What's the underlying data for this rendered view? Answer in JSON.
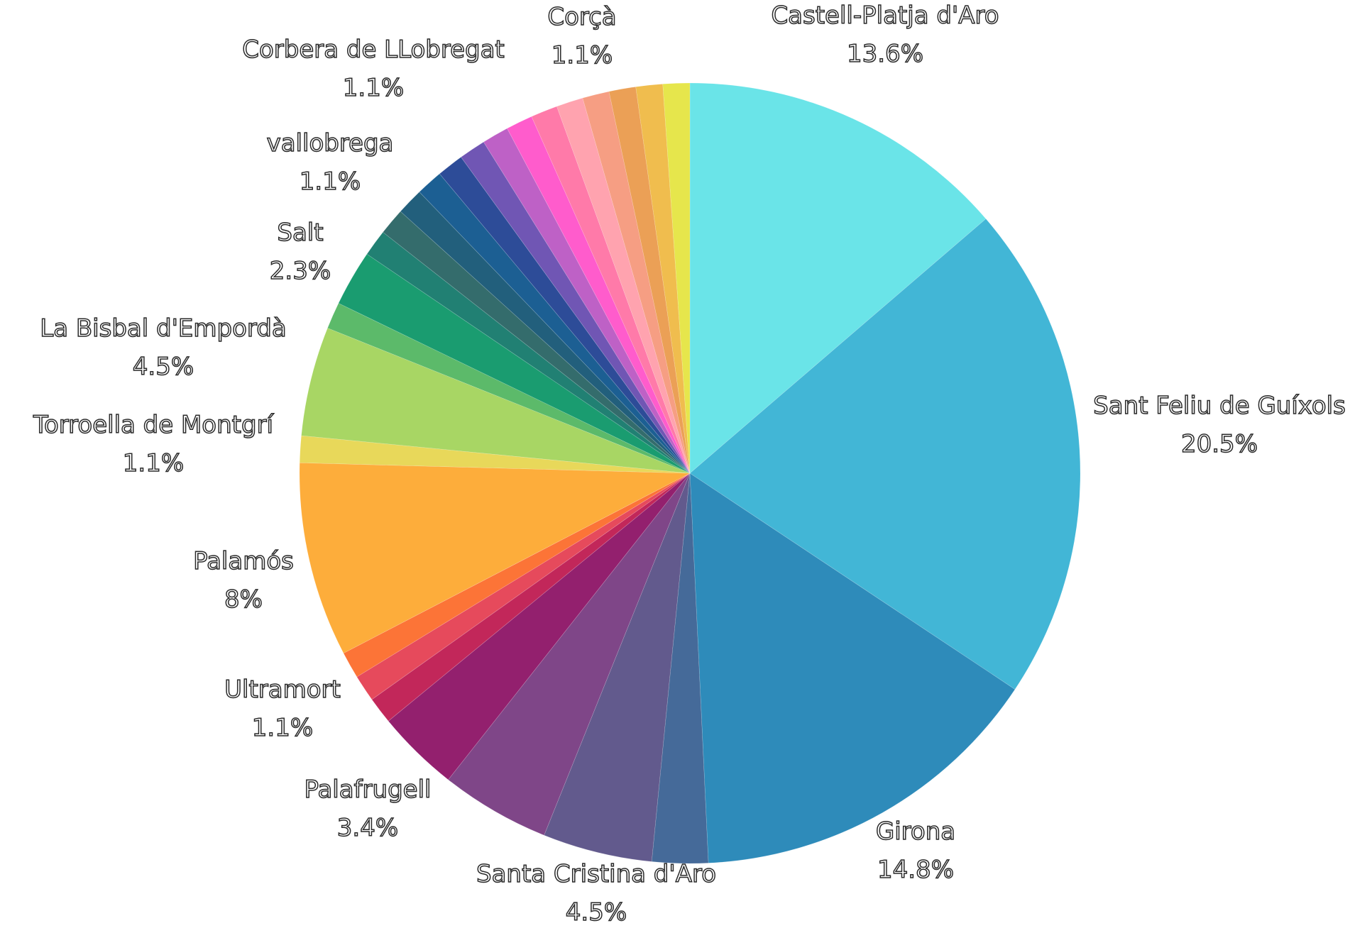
{
  "chart_data": {
    "type": "pie",
    "start_angle_deg": 0,
    "direction": "clockwise",
    "slices": [
      {
        "name": "Castell-Platja d'Aro",
        "value": 13.6,
        "label": "13.6%",
        "color": "#6ae4e8",
        "show_label": true
      },
      {
        "name": "Sant Feliu de Guíxols",
        "value": 20.5,
        "label": "20.5%",
        "color": "#42b6d6",
        "show_label": true
      },
      {
        "name": "Girona",
        "value": 14.8,
        "label": "14.8%",
        "color": "#2e8bba",
        "show_label": true
      },
      {
        "name": "",
        "value": 2.3,
        "label": "",
        "color": "#456a99",
        "show_label": false
      },
      {
        "name": "Santa Cristina d'Aro",
        "value": 4.5,
        "label": "4.5%",
        "color": "#625a8d",
        "show_label": true
      },
      {
        "name": "",
        "value": 4.5,
        "label": "",
        "color": "#7f4688",
        "show_label": false
      },
      {
        "name": "Palafrugell",
        "value": 3.4,
        "label": "3.4%",
        "color": "#93206e",
        "show_label": true
      },
      {
        "name": "",
        "value": 1.1,
        "label": "",
        "color": "#c2275a",
        "show_label": false
      },
      {
        "name": "Ultramort",
        "value": 1.1,
        "label": "1.1%",
        "color": "#e64a5c",
        "show_label": true
      },
      {
        "name": "",
        "value": 1.1,
        "label": "",
        "color": "#fc7437",
        "show_label": false
      },
      {
        "name": "Palamós",
        "value": 8.0,
        "label": "8%",
        "color": "#fdad3b",
        "show_label": true
      },
      {
        "name": "Torroella de Montgrí",
        "value": 1.1,
        "label": "1.1%",
        "color": "#e8d85a",
        "show_label": true
      },
      {
        "name": "La Bisbal d'Empordà",
        "value": 4.5,
        "label": "4.5%",
        "color": "#a8d664",
        "show_label": true
      },
      {
        "name": "",
        "value": 1.1,
        "label": "",
        "color": "#5cba6a",
        "show_label": false
      },
      {
        "name": "Salt",
        "value": 2.3,
        "label": "2.3%",
        "color": "#1a9c70",
        "show_label": true
      },
      {
        "name": "",
        "value": 1.1,
        "label": "",
        "color": "#218073",
        "show_label": false
      },
      {
        "name": "",
        "value": 1.1,
        "label": "",
        "color": "#346c6c",
        "show_label": false
      },
      {
        "name": "",
        "value": 1.1,
        "label": "",
        "color": "#225f7c",
        "show_label": false
      },
      {
        "name": "vallobrega",
        "value": 1.1,
        "label": "1.1%",
        "color": "#1c5f93",
        "show_label": true
      },
      {
        "name": "",
        "value": 1.1,
        "label": "",
        "color": "#2d4c98",
        "show_label": false
      },
      {
        "name": "",
        "value": 1.1,
        "label": "",
        "color": "#7056b4",
        "show_label": false
      },
      {
        "name": "",
        "value": 1.1,
        "label": "",
        "color": "#be61c6",
        "show_label": false
      },
      {
        "name": "",
        "value": 1.1,
        "label": "",
        "color": "#ff5ccc",
        "show_label": false
      },
      {
        "name": "Corbera de LLobregat",
        "value": 1.1,
        "label": "1.1%",
        "color": "#ff7aa9",
        "show_label": true
      },
      {
        "name": "",
        "value": 1.1,
        "label": "",
        "color": "#ffa3af",
        "show_label": false
      },
      {
        "name": "",
        "value": 1.1,
        "label": "",
        "color": "#f69e83",
        "show_label": false
      },
      {
        "name": "",
        "value": 1.1,
        "label": "",
        "color": "#eba056",
        "show_label": false
      },
      {
        "name": "Corçà",
        "value": 1.1,
        "label": "1.1%",
        "color": "#f0bd4e",
        "show_label": true
      },
      {
        "name": "",
        "value": 1.1,
        "label": "",
        "color": "#e6e64c",
        "show_label": false
      }
    ]
  }
}
